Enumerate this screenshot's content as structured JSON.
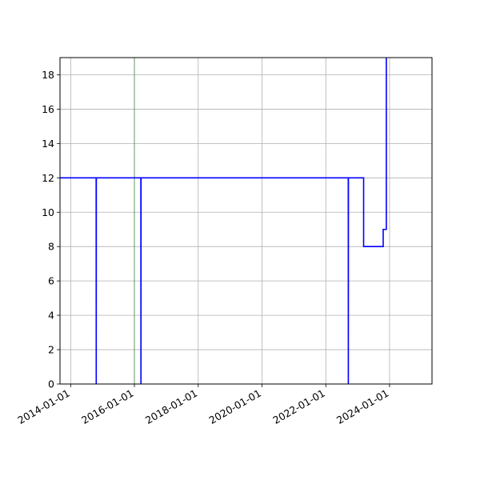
{
  "chart_data": {
    "type": "line",
    "step": true,
    "title": "",
    "xlabel": "",
    "ylabel": "",
    "x_axis_type": "date",
    "xlim": [
      "2013-09-01",
      "2025-05-01"
    ],
    "ylim": [
      0,
      19
    ],
    "grid": true,
    "x_ticks": [
      "2014-01-01",
      "2016-01-01",
      "2018-01-01",
      "2020-01-01",
      "2022-01-01",
      "2024-01-01"
    ],
    "y_ticks": [
      0,
      2,
      4,
      6,
      8,
      10,
      12,
      14,
      16,
      18
    ],
    "colors": {
      "line": "#0000ff",
      "grid": "#b0b0b0",
      "axis": "#000000",
      "thin_line": "#4a8f4a"
    },
    "series": [
      {
        "name": "",
        "points": [
          {
            "x": "2013-09-01",
            "y": 12
          },
          {
            "x": "2014-10-20",
            "y": 12
          },
          {
            "x": "2014-10-21",
            "y": 0
          },
          {
            "x": "2014-10-22",
            "y": 12
          },
          {
            "x": "2016-03-15",
            "y": 12
          },
          {
            "x": "2016-03-16",
            "y": 0
          },
          {
            "x": "2016-03-17",
            "y": 12
          },
          {
            "x": "2022-09-15",
            "y": 12
          },
          {
            "x": "2022-09-16",
            "y": 0
          },
          {
            "x": "2022-09-17",
            "y": 12
          },
          {
            "x": "2023-03-10",
            "y": 12
          },
          {
            "x": "2023-03-10",
            "y": 8
          },
          {
            "x": "2023-10-20",
            "y": 8
          },
          {
            "x": "2023-10-20",
            "y": 9
          },
          {
            "x": "2023-11-25",
            "y": 9
          },
          {
            "x": "2023-11-25",
            "y": 19
          }
        ]
      }
    ],
    "vertical_markers": [
      "2016-01-01"
    ]
  }
}
